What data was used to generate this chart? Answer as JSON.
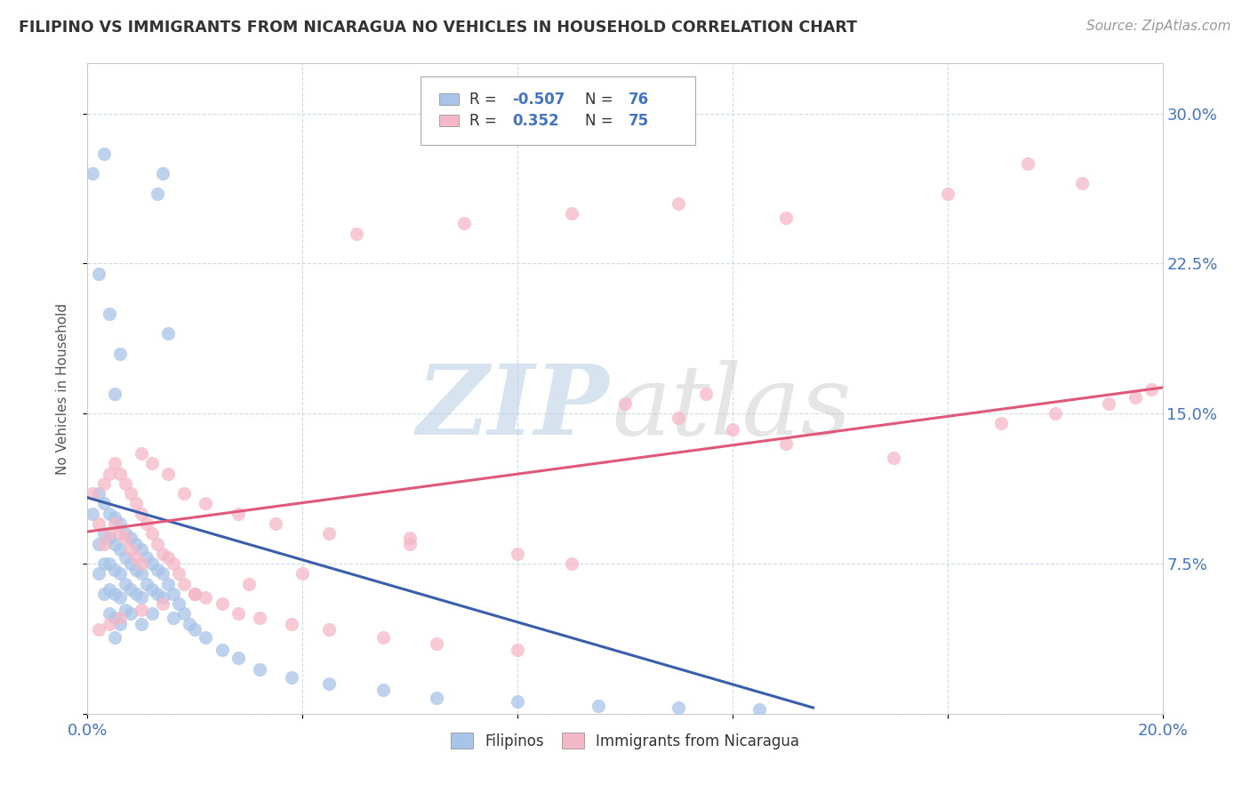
{
  "title": "FILIPINO VS IMMIGRANTS FROM NICARAGUA NO VEHICLES IN HOUSEHOLD CORRELATION CHART",
  "source": "Source: ZipAtlas.com",
  "ylabel": "No Vehicles in Household",
  "xlim": [
    0.0,
    0.2
  ],
  "ylim": [
    0.0,
    0.325
  ],
  "xtick_positions": [
    0.0,
    0.04,
    0.08,
    0.12,
    0.16,
    0.2
  ],
  "xticklabels": [
    "0.0%",
    "",
    "",
    "",
    "",
    "20.0%"
  ],
  "ytick_positions": [
    0.0,
    0.075,
    0.15,
    0.225,
    0.3
  ],
  "yticklabels": [
    "",
    "7.5%",
    "15.0%",
    "22.5%",
    "30.0%"
  ],
  "legend_label1": "Filipinos",
  "legend_label2": "Immigrants from Nicaragua",
  "blue_color": "#a8c4e8",
  "pink_color": "#f4b8c8",
  "blue_line_color": "#3a5faa",
  "pink_line_color": "#e05878",
  "background_color": "#ffffff",
  "grid_color": "#c8d8e8",
  "tick_color": "#4472c4",
  "title_color": "#333333",
  "source_color": "#999999",
  "blue_scatter_x": [
    0.001,
    0.002,
    0.002,
    0.002,
    0.003,
    0.003,
    0.003,
    0.003,
    0.004,
    0.004,
    0.004,
    0.004,
    0.004,
    0.005,
    0.005,
    0.005,
    0.005,
    0.005,
    0.005,
    0.006,
    0.006,
    0.006,
    0.006,
    0.006,
    0.007,
    0.007,
    0.007,
    0.007,
    0.008,
    0.008,
    0.008,
    0.008,
    0.009,
    0.009,
    0.009,
    0.01,
    0.01,
    0.01,
    0.01,
    0.011,
    0.011,
    0.012,
    0.012,
    0.012,
    0.013,
    0.013,
    0.014,
    0.014,
    0.015,
    0.016,
    0.016,
    0.017,
    0.018,
    0.019,
    0.02,
    0.022,
    0.025,
    0.028,
    0.032,
    0.038,
    0.045,
    0.055,
    0.065,
    0.08,
    0.095,
    0.11,
    0.125,
    0.013,
    0.014,
    0.015,
    0.003,
    0.004,
    0.005,
    0.001,
    0.002,
    0.006
  ],
  "blue_scatter_y": [
    0.1,
    0.11,
    0.085,
    0.07,
    0.105,
    0.09,
    0.075,
    0.06,
    0.1,
    0.088,
    0.075,
    0.062,
    0.05,
    0.098,
    0.085,
    0.072,
    0.06,
    0.048,
    0.038,
    0.095,
    0.082,
    0.07,
    0.058,
    0.045,
    0.09,
    0.078,
    0.065,
    0.052,
    0.088,
    0.075,
    0.062,
    0.05,
    0.085,
    0.072,
    0.06,
    0.082,
    0.07,
    0.058,
    0.045,
    0.078,
    0.065,
    0.075,
    0.062,
    0.05,
    0.072,
    0.06,
    0.07,
    0.058,
    0.065,
    0.06,
    0.048,
    0.055,
    0.05,
    0.045,
    0.042,
    0.038,
    0.032,
    0.028,
    0.022,
    0.018,
    0.015,
    0.012,
    0.008,
    0.006,
    0.004,
    0.003,
    0.002,
    0.26,
    0.27,
    0.19,
    0.28,
    0.2,
    0.16,
    0.27,
    0.22,
    0.18
  ],
  "pink_scatter_x": [
    0.001,
    0.002,
    0.003,
    0.003,
    0.004,
    0.004,
    0.005,
    0.005,
    0.006,
    0.006,
    0.007,
    0.007,
    0.008,
    0.008,
    0.009,
    0.009,
    0.01,
    0.01,
    0.011,
    0.012,
    0.013,
    0.014,
    0.015,
    0.016,
    0.017,
    0.018,
    0.02,
    0.022,
    0.025,
    0.028,
    0.032,
    0.038,
    0.045,
    0.055,
    0.065,
    0.08,
    0.01,
    0.012,
    0.015,
    0.018,
    0.022,
    0.028,
    0.035,
    0.045,
    0.06,
    0.08,
    0.1,
    0.11,
    0.12,
    0.13,
    0.15,
    0.17,
    0.18,
    0.19,
    0.195,
    0.198,
    0.115,
    0.09,
    0.06,
    0.04,
    0.03,
    0.02,
    0.014,
    0.01,
    0.006,
    0.004,
    0.002,
    0.16,
    0.175,
    0.185,
    0.05,
    0.07,
    0.09,
    0.11,
    0.13
  ],
  "pink_scatter_y": [
    0.11,
    0.095,
    0.115,
    0.085,
    0.12,
    0.09,
    0.125,
    0.095,
    0.12,
    0.09,
    0.115,
    0.088,
    0.11,
    0.082,
    0.105,
    0.078,
    0.1,
    0.075,
    0.095,
    0.09,
    0.085,
    0.08,
    0.078,
    0.075,
    0.07,
    0.065,
    0.06,
    0.058,
    0.055,
    0.05,
    0.048,
    0.045,
    0.042,
    0.038,
    0.035,
    0.032,
    0.13,
    0.125,
    0.12,
    0.11,
    0.105,
    0.1,
    0.095,
    0.09,
    0.085,
    0.08,
    0.155,
    0.148,
    0.142,
    0.135,
    0.128,
    0.145,
    0.15,
    0.155,
    0.158,
    0.162,
    0.16,
    0.075,
    0.088,
    0.07,
    0.065,
    0.06,
    0.055,
    0.052,
    0.048,
    0.045,
    0.042,
    0.26,
    0.275,
    0.265,
    0.24,
    0.245,
    0.25,
    0.255,
    0.248
  ],
  "blue_line_x0": 0.0,
  "blue_line_x1": 0.135,
  "blue_line_y0": 0.108,
  "blue_line_y1": 0.003,
  "pink_line_x0": 0.0,
  "pink_line_x1": 0.2,
  "pink_line_y0": 0.091,
  "pink_line_y1": 0.163
}
